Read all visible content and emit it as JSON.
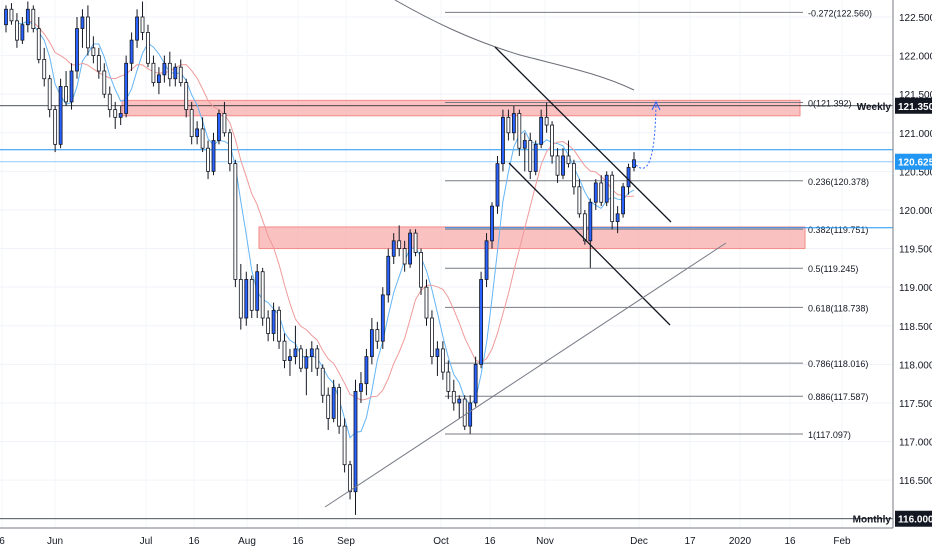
{
  "chart_data": {
    "type": "candlestick",
    "title": "",
    "xlabel": "",
    "ylabel": "",
    "ylim": [
      115.88,
      122.72
    ],
    "x_tick_labels": [
      "6",
      "Jun",
      "Jul",
      "16",
      "Aug",
      "16",
      "Sep",
      "Oct",
      "16",
      "Nov",
      "Dec",
      "17",
      "2020",
      "16",
      "Feb"
    ],
    "y_tick_labels": [
      "122.500",
      "122.000",
      "121.500",
      "121.000",
      "120.500",
      "120.000",
      "119.500",
      "119.000",
      "118.500",
      "118.000",
      "117.500",
      "117.000",
      "116.500"
    ],
    "y_ticks": [
      122.5,
      122.0,
      121.5,
      121.0,
      120.5,
      120.0,
      119.5,
      119.0,
      118.5,
      118.0,
      117.5,
      117.0,
      116.5
    ],
    "price_badges": [
      {
        "label": "121.350",
        "value": 121.35,
        "tag": "Weekly",
        "color": "#131722"
      },
      {
        "label": "120.625",
        "value": 120.625,
        "tag": "",
        "color": "#2196f3"
      },
      {
        "label": "116.000",
        "value": 116.0,
        "tag": "Monthly",
        "color": "#131722"
      }
    ],
    "fibonacci": [
      {
        "level": "-0.272",
        "price": 122.56
      },
      {
        "level": "0",
        "price": 121.392
      },
      {
        "level": "0.236",
        "price": 120.378
      },
      {
        "level": "0.382",
        "price": 119.751
      },
      {
        "level": "0.5",
        "price": 119.245
      },
      {
        "level": "0.618",
        "price": 118.738
      },
      {
        "level": "0.786",
        "price": 118.016
      },
      {
        "level": "0.886",
        "price": 117.587
      },
      {
        "level": "1",
        "price": 117.097
      }
    ],
    "zones": [
      {
        "name": "weekly-resistance-zone",
        "low": 121.22,
        "high": 121.42
      },
      {
        "name": "support-zone",
        "low": 119.5,
        "high": 119.78
      }
    ],
    "candles_ohlc": [
      [
        122.4,
        122.65,
        122.3,
        122.6
      ],
      [
        122.6,
        122.68,
        122.4,
        122.45
      ],
      [
        122.45,
        122.55,
        122.1,
        122.2
      ],
      [
        122.2,
        122.5,
        122.15,
        122.4
      ],
      [
        122.4,
        122.7,
        122.3,
        122.6
      ],
      [
        122.6,
        122.65,
        122.3,
        122.35
      ],
      [
        122.35,
        122.5,
        121.9,
        121.95
      ],
      [
        121.95,
        122.1,
        121.6,
        121.7
      ],
      [
        121.7,
        121.75,
        121.2,
        121.3
      ],
      [
        121.3,
        121.35,
        120.75,
        120.85
      ],
      [
        120.85,
        121.7,
        120.8,
        121.6
      ],
      [
        121.6,
        121.8,
        121.35,
        121.4
      ],
      [
        121.4,
        121.9,
        121.3,
        121.8
      ],
      [
        121.8,
        122.5,
        121.7,
        122.35
      ],
      [
        122.35,
        122.6,
        122.1,
        122.5
      ],
      [
        122.5,
        122.65,
        122.0,
        122.1
      ],
      [
        122.1,
        122.25,
        121.9,
        122.0
      ],
      [
        122.0,
        122.1,
        121.7,
        121.8
      ],
      [
        121.8,
        121.9,
        121.45,
        121.5
      ],
      [
        121.5,
        121.6,
        121.2,
        121.3
      ],
      [
        121.3,
        121.4,
        121.05,
        121.2
      ],
      [
        121.2,
        121.35,
        121.1,
        121.25
      ],
      [
        121.25,
        122.0,
        121.2,
        121.9
      ],
      [
        121.9,
        122.3,
        121.8,
        122.2
      ],
      [
        122.2,
        122.6,
        122.1,
        122.5
      ],
      [
        122.5,
        122.7,
        122.2,
        122.3
      ],
      [
        122.3,
        122.4,
        121.85,
        121.9
      ],
      [
        121.9,
        122.0,
        121.6,
        121.65
      ],
      [
        121.65,
        121.85,
        121.5,
        121.75
      ],
      [
        121.75,
        122.0,
        121.65,
        121.9
      ],
      [
        121.9,
        122.05,
        121.6,
        121.7
      ],
      [
        121.7,
        121.9,
        121.6,
        121.85
      ],
      [
        121.85,
        121.95,
        121.6,
        121.65
      ],
      [
        121.65,
        121.7,
        121.2,
        121.3
      ],
      [
        121.3,
        121.4,
        120.85,
        120.95
      ],
      [
        120.95,
        121.15,
        120.85,
        121.05
      ],
      [
        121.05,
        121.2,
        120.75,
        120.8
      ],
      [
        120.8,
        120.9,
        120.4,
        120.5
      ],
      [
        120.5,
        121.0,
        120.45,
        120.9
      ],
      [
        120.9,
        121.3,
        120.85,
        121.25
      ],
      [
        121.25,
        121.4,
        120.95,
        121.0
      ],
      [
        121.0,
        121.05,
        120.5,
        120.6
      ],
      [
        120.6,
        120.65,
        119.0,
        119.1
      ],
      [
        119.1,
        119.3,
        118.45,
        118.6
      ],
      [
        118.6,
        119.2,
        118.5,
        119.1
      ],
      [
        119.1,
        119.15,
        118.6,
        118.7
      ],
      [
        118.7,
        119.3,
        118.6,
        119.2
      ],
      [
        119.2,
        119.25,
        118.5,
        118.6
      ],
      [
        118.6,
        118.7,
        118.3,
        118.4
      ],
      [
        118.4,
        118.8,
        118.3,
        118.7
      ],
      [
        118.7,
        118.75,
        118.2,
        118.3
      ],
      [
        118.3,
        118.4,
        117.95,
        118.05
      ],
      [
        118.05,
        118.2,
        117.85,
        118.1
      ],
      [
        118.1,
        118.5,
        118.0,
        118.2
      ],
      [
        118.2,
        118.25,
        117.9,
        117.95
      ],
      [
        117.95,
        118.2,
        117.6,
        118.1
      ],
      [
        118.1,
        118.3,
        117.9,
        118.2
      ],
      [
        118.2,
        118.25,
        117.85,
        117.95
      ],
      [
        117.95,
        118.0,
        117.5,
        117.6
      ],
      [
        117.6,
        117.7,
        117.15,
        117.3
      ],
      [
        117.3,
        117.8,
        117.25,
        117.7
      ],
      [
        117.7,
        117.75,
        117.1,
        117.2
      ],
      [
        117.2,
        117.3,
        116.6,
        116.7
      ],
      [
        116.7,
        116.75,
        116.25,
        116.35
      ],
      [
        116.35,
        117.8,
        116.05,
        117.65
      ],
      [
        117.65,
        117.9,
        117.5,
        117.75
      ],
      [
        117.75,
        118.2,
        117.6,
        118.1
      ],
      [
        118.1,
        118.6,
        118.0,
        118.45
      ],
      [
        118.45,
        118.55,
        118.2,
        118.3
      ],
      [
        118.3,
        119.0,
        118.2,
        118.9
      ],
      [
        118.9,
        119.5,
        118.8,
        119.4
      ],
      [
        119.4,
        119.7,
        119.3,
        119.6
      ],
      [
        119.6,
        119.8,
        119.4,
        119.5
      ],
      [
        119.5,
        119.6,
        119.2,
        119.3
      ],
      [
        119.3,
        119.75,
        119.25,
        119.7
      ],
      [
        119.7,
        119.75,
        119.4,
        119.45
      ],
      [
        119.45,
        119.5,
        118.9,
        119.0
      ],
      [
        119.0,
        119.1,
        118.5,
        118.6
      ],
      [
        118.6,
        118.7,
        118.0,
        118.1
      ],
      [
        118.1,
        118.3,
        117.85,
        118.2
      ],
      [
        118.2,
        118.3,
        117.8,
        117.9
      ],
      [
        117.9,
        118.05,
        117.55,
        117.65
      ],
      [
        117.65,
        117.8,
        117.4,
        117.5
      ],
      [
        117.5,
        117.6,
        117.3,
        117.55
      ],
      [
        117.55,
        117.6,
        117.15,
        117.2
      ],
      [
        117.2,
        117.6,
        117.1,
        117.5
      ],
      [
        117.5,
        118.1,
        117.45,
        118.0
      ],
      [
        118.0,
        119.2,
        117.95,
        119.1
      ],
      [
        119.1,
        119.7,
        119.0,
        119.6
      ],
      [
        119.6,
        120.1,
        119.5,
        120.05
      ],
      [
        120.05,
        120.7,
        119.95,
        120.6
      ],
      [
        120.6,
        121.3,
        120.5,
        121.2
      ],
      [
        121.2,
        121.3,
        120.9,
        121.0
      ],
      [
        121.0,
        121.35,
        120.9,
        121.25
      ],
      [
        121.25,
        121.3,
        120.7,
        120.8
      ],
      [
        120.8,
        121.0,
        120.5,
        120.9
      ],
      [
        120.9,
        121.0,
        120.4,
        120.5
      ],
      [
        120.5,
        120.9,
        120.45,
        120.85
      ],
      [
        120.85,
        121.3,
        120.8,
        121.2
      ],
      [
        121.2,
        121.39,
        121.0,
        121.1
      ],
      [
        121.1,
        121.15,
        120.6,
        120.7
      ],
      [
        120.7,
        120.8,
        120.35,
        120.45
      ],
      [
        120.45,
        120.8,
        120.4,
        120.7
      ],
      [
        120.7,
        120.9,
        120.55,
        120.6
      ],
      [
        120.6,
        120.65,
        120.2,
        120.3
      ],
      [
        120.3,
        120.4,
        119.9,
        119.95
      ],
      [
        119.95,
        120.0,
        119.55,
        119.6
      ],
      [
        119.6,
        120.15,
        119.25,
        120.1
      ],
      [
        120.1,
        120.4,
        120.0,
        120.35
      ],
      [
        120.35,
        120.45,
        120.05,
        120.1
      ],
      [
        120.1,
        120.5,
        120.05,
        120.45
      ],
      [
        120.45,
        120.5,
        119.75,
        119.85
      ],
      [
        119.85,
        120.05,
        119.7,
        119.95
      ],
      [
        119.95,
        120.35,
        119.9,
        120.3
      ],
      [
        120.3,
        120.6,
        120.2,
        120.55
      ],
      [
        120.55,
        120.75,
        120.5,
        120.65
      ]
    ],
    "notes": [
      "Weekly",
      "Monthly"
    ]
  }
}
